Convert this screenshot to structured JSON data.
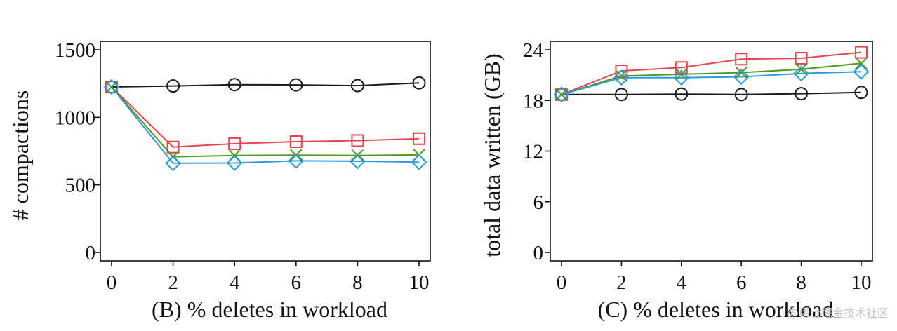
{
  "chart_data": [
    {
      "type": "line",
      "id": "B",
      "xlabel": "(B) % deletes in workload",
      "ylabel": "# compactions",
      "x": [
        0,
        2,
        4,
        6,
        8,
        10
      ],
      "xlim": [
        0,
        10
      ],
      "ylim": [
        0,
        1500
      ],
      "xticks": [
        0,
        2,
        4,
        6,
        8,
        10
      ],
      "yticks": [
        0,
        500,
        1000,
        1500
      ],
      "series": [
        {
          "name": "circle",
          "color": "#1a1a1a",
          "marker": "circle",
          "values": [
            1225,
            1232,
            1242,
            1240,
            1235,
            1255
          ]
        },
        {
          "name": "square",
          "color": "#e8434d",
          "marker": "square",
          "values": [
            1225,
            780,
            805,
            820,
            828,
            842
          ]
        },
        {
          "name": "cross",
          "color": "#4f9a1e",
          "marker": "x",
          "values": [
            1225,
            708,
            718,
            720,
            718,
            722
          ]
        },
        {
          "name": "diamond",
          "color": "#2b9ae0",
          "marker": "diamond",
          "values": [
            1225,
            660,
            662,
            678,
            675,
            668
          ]
        }
      ]
    },
    {
      "type": "line",
      "id": "C",
      "xlabel": "(C) % deletes in workload",
      "ylabel": "total data written (GB)",
      "x": [
        0,
        2,
        4,
        6,
        8,
        10
      ],
      "xlim": [
        0,
        10
      ],
      "ylim": [
        0,
        24
      ],
      "xticks": [
        0,
        2,
        4,
        6,
        8,
        10
      ],
      "yticks": [
        0,
        6,
        12,
        18,
        24
      ],
      "series": [
        {
          "name": "circle",
          "color": "#1a1a1a",
          "marker": "circle",
          "values": [
            18.7,
            18.7,
            18.75,
            18.7,
            18.8,
            18.95
          ]
        },
        {
          "name": "square",
          "color": "#e8434d",
          "marker": "square",
          "values": [
            18.7,
            21.5,
            21.9,
            22.9,
            23.0,
            23.7
          ]
        },
        {
          "name": "cross",
          "color": "#4f9a1e",
          "marker": "x",
          "values": [
            18.7,
            20.9,
            21.1,
            21.3,
            21.7,
            22.4
          ]
        },
        {
          "name": "diamond",
          "color": "#2b9ae0",
          "marker": "diamond",
          "values": [
            18.7,
            20.7,
            20.7,
            20.8,
            21.2,
            21.4
          ]
        }
      ]
    }
  ],
  "watermark": "@稀土掘金技术社区"
}
